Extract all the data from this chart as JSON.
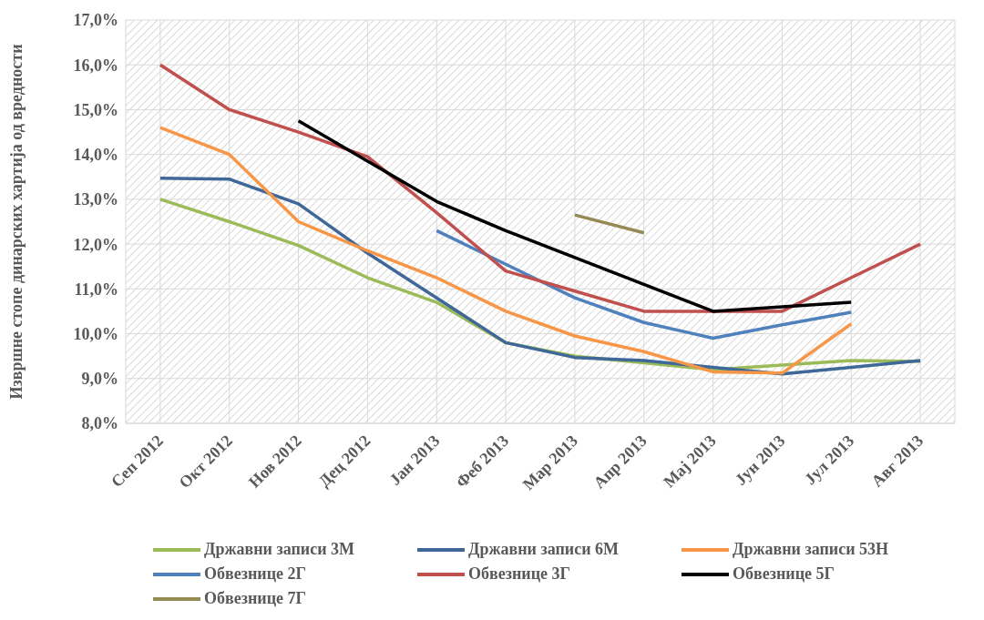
{
  "chart_data": {
    "type": "line",
    "ylabel": "Извршне стопе динарских хартија од вредности",
    "categories": [
      "Сеп 2012",
      "Окт 2012",
      "Нов 2012",
      "Дец 2012",
      "Јан 2013",
      "Феб 2013",
      "Мар 2013",
      "Апр 2013",
      "Мај 2013",
      "Јун 2013",
      "Јул 2013",
      "Авг 2013"
    ],
    "series": [
      {
        "name": "Државни записи 3М",
        "color": "#9bbb59",
        "values": [
          13.0,
          12.5,
          11.97,
          11.25,
          10.7,
          9.8,
          9.5,
          9.35,
          9.2,
          9.3,
          9.4,
          9.38
        ]
      },
      {
        "name": "Државни записи 6М",
        "color": "#3f6797",
        "values": [
          13.47,
          13.45,
          12.9,
          11.8,
          10.8,
          9.8,
          9.47,
          9.4,
          9.25,
          9.1,
          9.25,
          9.4
        ]
      },
      {
        "name": "Државни записи 53Н",
        "color": "#f79646",
        "values": [
          14.6,
          14.0,
          12.5,
          11.85,
          11.25,
          10.5,
          9.95,
          9.6,
          9.15,
          9.12,
          10.22,
          null
        ]
      },
      {
        "name": "Обвезнице 2Г",
        "color": "#4f81bd",
        "values": [
          null,
          null,
          null,
          null,
          12.3,
          11.55,
          10.8,
          10.25,
          9.9,
          10.2,
          10.48,
          null
        ]
      },
      {
        "name": "Обвезнице 3Г",
        "color": "#c0504d",
        "values": [
          16.0,
          15.0,
          14.5,
          13.95,
          12.7,
          11.4,
          10.95,
          10.5,
          10.5,
          10.5,
          11.25,
          12.0
        ]
      },
      {
        "name": "Обвезнице 5Г",
        "color": "#000000",
        "values": [
          null,
          null,
          14.75,
          13.85,
          12.95,
          12.3,
          11.7,
          11.1,
          10.5,
          10.6,
          10.7,
          null
        ]
      },
      {
        "name": "Обвезнице 7Г",
        "color": "#948a54",
        "values": [
          null,
          null,
          null,
          null,
          null,
          null,
          12.65,
          12.25,
          null,
          null,
          null,
          null
        ]
      }
    ],
    "ylim": [
      8,
      17
    ],
    "yticks": [
      {
        "value": 8,
        "label": "8,0%"
      },
      {
        "value": 9,
        "label": "9,0%"
      },
      {
        "value": 10,
        "label": "10,0%"
      },
      {
        "value": 11,
        "label": "11,0%"
      },
      {
        "value": 12,
        "label": "12,0%"
      },
      {
        "value": 13,
        "label": "13,0%"
      },
      {
        "value": 14,
        "label": "14,0%"
      },
      {
        "value": 15,
        "label": "15,0%"
      },
      {
        "value": 16,
        "label": "16,0%"
      },
      {
        "value": 17,
        "label": "17,0%"
      }
    ],
    "grid": true,
    "legend": "bottom",
    "marker": "none",
    "line_style": "solid"
  }
}
